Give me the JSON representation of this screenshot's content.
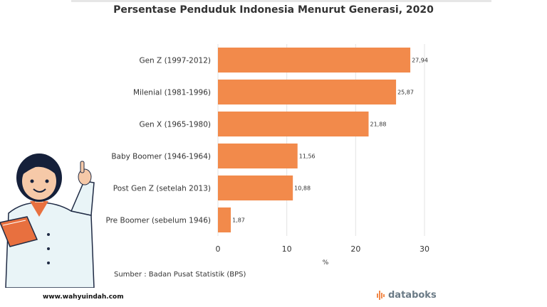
{
  "chart_data": {
    "type": "bar",
    "orientation": "horizontal",
    "title": "Persentase Penduduk Indonesia Menurut Generasi, 2020",
    "categories": [
      "Gen Z (1997-2012)",
      "Milenial (1981-1996)",
      "Gen X (1965-1980)",
      "Baby Boomer (1946-1964)",
      "Post Gen Z (setelah 2013)",
      "Pre Boomer (sebelum 1946)"
    ],
    "values": [
      27.94,
      25.87,
      21.88,
      11.56,
      10.88,
      1.87
    ],
    "value_labels": [
      "27,94",
      "25,87",
      "21,88",
      "11,56",
      "10,88",
      "1,87"
    ],
    "xlabel": "%",
    "xlim": [
      0,
      30
    ],
    "xticks": [
      0,
      10,
      20,
      30
    ],
    "grid": true,
    "bar_color": "#f28a4b"
  },
  "source_text": "Sumber : Badan Pusat Statistik (BPS)",
  "website": "www.wahyuindah.com",
  "brand": {
    "name": "databoks",
    "color": "#f28a4b"
  }
}
